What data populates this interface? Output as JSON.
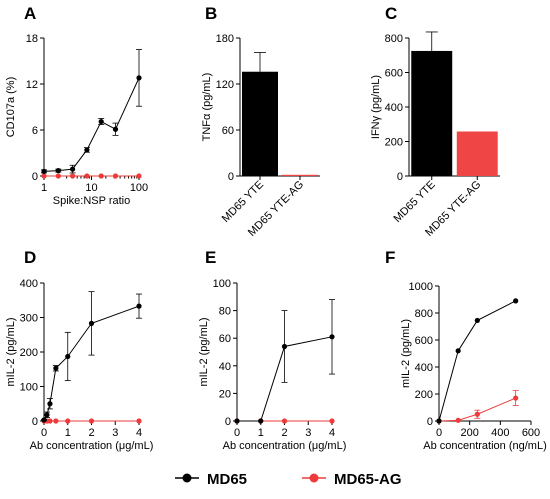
{
  "colors": {
    "black_series": "#000000",
    "red_series": "#ee3a3a",
    "bar_red": "#f04545"
  },
  "legend": {
    "items": [
      {
        "label": "MD65",
        "color": "#000000"
      },
      {
        "label": "MD65-AG",
        "color": "#ee3a3a"
      }
    ]
  },
  "chart_data": [
    {
      "panel": "A",
      "type": "line",
      "xlabel": "Spike:NSP ratio",
      "ylabel": "CD107a (%)",
      "x_scale": "log",
      "xlim": [
        1,
        100
      ],
      "ylim": [
        0,
        18
      ],
      "x_ticks": [
        1,
        10,
        100
      ],
      "x_tick_labels": [
        "1",
        "10",
        "100"
      ],
      "y_ticks": [
        0,
        6,
        12,
        18
      ],
      "y_tick_labels": [
        "0",
        "6",
        "12",
        "18"
      ],
      "series": [
        {
          "name": "MD65",
          "color": "#000000",
          "x": [
            1,
            2,
            4,
            8,
            16,
            32,
            100
          ],
          "y": [
            0.6,
            0.7,
            0.9,
            3.4,
            7.1,
            6.1,
            12.8
          ],
          "err": [
            0.2,
            0.2,
            0.5,
            0.3,
            0.4,
            0.8,
            3.7
          ]
        },
        {
          "name": "MD65-AG",
          "color": "#ee3a3a",
          "x": [
            1,
            2,
            4,
            8,
            16,
            32,
            100
          ],
          "y": [
            0,
            0,
            0,
            0,
            0,
            0,
            0
          ],
          "err": [
            0,
            0,
            0,
            0,
            0,
            0,
            0
          ]
        }
      ]
    },
    {
      "panel": "B",
      "type": "bar",
      "ylabel": "TNFα (pg/mL)",
      "ylim": [
        0,
        180
      ],
      "y_ticks": [
        0,
        60,
        120,
        180
      ],
      "y_tick_labels": [
        "0",
        "60",
        "120",
        "180"
      ],
      "categories": [
        "MD65 YTE",
        "MD65 YTE-AG"
      ],
      "values": [
        136,
        1.5
      ],
      "err": [
        25,
        0
      ],
      "bar_colors": [
        "#000000",
        "#f04545"
      ]
    },
    {
      "panel": "C",
      "type": "bar",
      "ylabel": "IFNγ (pg/mL)",
      "ylim": [
        0,
        800
      ],
      "y_ticks": [
        0,
        200,
        400,
        600,
        800
      ],
      "y_tick_labels": [
        "0",
        "200",
        "400",
        "600",
        "800"
      ],
      "categories": [
        "MD65 YTE",
        "MD65 YTE-AG"
      ],
      "values": [
        725,
        258
      ],
      "err": [
        110,
        0
      ],
      "bar_colors": [
        "#000000",
        "#f04545"
      ]
    },
    {
      "panel": "D",
      "type": "line",
      "xlabel": "Ab concentration (μg/mL)",
      "ylabel": "mIL-2 (pg/mL)",
      "xlim": [
        0,
        4
      ],
      "ylim": [
        0,
        400
      ],
      "x_ticks": [
        0,
        1,
        2,
        3,
        4
      ],
      "x_tick_labels": [
        "0",
        "1",
        "2",
        "3",
        "4"
      ],
      "y_ticks": [
        0,
        100,
        200,
        300,
        400
      ],
      "y_tick_labels": [
        "0",
        "100",
        "200",
        "300",
        "400"
      ],
      "series": [
        {
          "name": "MD65",
          "color": "#000000",
          "x": [
            0,
            0.125,
            0.25,
            0.5,
            1,
            2,
            4
          ],
          "y": [
            3,
            18,
            50,
            153,
            187,
            283,
            333
          ],
          "err": [
            2,
            8,
            15,
            8,
            70,
            92,
            35
          ]
        },
        {
          "name": "MD65-AG",
          "color": "#ee3a3a",
          "x": [
            0,
            0.125,
            0.25,
            0.5,
            1,
            2,
            4
          ],
          "y": [
            0,
            0,
            0,
            0,
            0,
            0,
            0
          ],
          "err": [
            0,
            0,
            0,
            0,
            0,
            0,
            0
          ]
        }
      ]
    },
    {
      "panel": "E",
      "type": "line",
      "xlabel": "Ab concentration (μg/mL)",
      "ylabel": "mIL-2 (pg/mL)",
      "xlim": [
        0,
        4
      ],
      "ylim": [
        0,
        100
      ],
      "x_ticks": [
        0,
        1,
        2,
        3,
        4
      ],
      "x_tick_labels": [
        "0",
        "1",
        "2",
        "3",
        "4"
      ],
      "y_ticks": [
        0,
        20,
        40,
        60,
        80,
        100
      ],
      "y_tick_labels": [
        "0",
        "20",
        "40",
        "60",
        "80",
        "100"
      ],
      "series": [
        {
          "name": "MD65",
          "color": "#000000",
          "x": [
            0,
            1,
            2,
            4
          ],
          "y": [
            0,
            0,
            54,
            61
          ],
          "err": [
            0,
            0,
            26,
            27
          ]
        },
        {
          "name": "MD65-AG",
          "color": "#ee3a3a",
          "x": [
            0,
            1,
            2,
            4
          ],
          "y": [
            0,
            0,
            0,
            0
          ],
          "err": [
            0,
            0,
            0,
            0
          ]
        }
      ]
    },
    {
      "panel": "F",
      "type": "line",
      "xlabel": "Ab concentration (ng/mL)",
      "ylabel": "mIL-2 (pg/mL)",
      "xlim": [
        0,
        600
      ],
      "ylim": [
        0,
        1000
      ],
      "x_ticks": [
        0,
        200,
        400,
        600
      ],
      "x_tick_labels": [
        "0",
        "200",
        "400",
        "600"
      ],
      "y_ticks": [
        0,
        200,
        400,
        600,
        800,
        1000
      ],
      "y_tick_labels": [
        "0",
        "200",
        "400",
        "600",
        "800",
        "1000"
      ],
      "series": [
        {
          "name": "MD65",
          "color": "#000000",
          "x": [
            0,
            125,
            250,
            500
          ],
          "y": [
            0,
            520,
            745,
            890
          ],
          "err": [
            0,
            0,
            0,
            0
          ]
        },
        {
          "name": "MD65-AG",
          "color": "#ee3a3a",
          "x": [
            0,
            125,
            250,
            500
          ],
          "y": [
            0,
            5,
            50,
            170
          ],
          "err": [
            0,
            0,
            30,
            55
          ]
        }
      ]
    }
  ]
}
